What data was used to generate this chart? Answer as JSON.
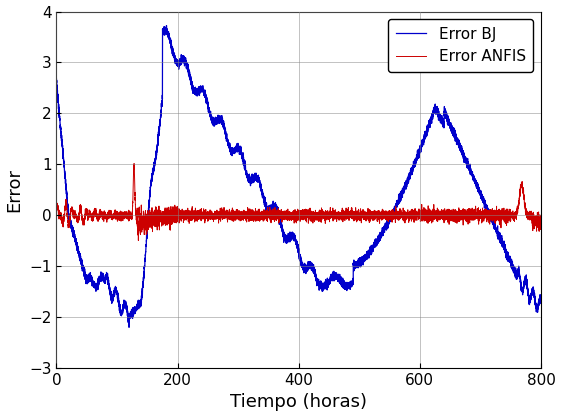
{
  "title": "",
  "xlabel": "Tiempo (horas)",
  "ylabel": "Error",
  "xlim": [
    0,
    800
  ],
  "ylim": [
    -3,
    4
  ],
  "yticks": [
    -3,
    -2,
    -1,
    0,
    1,
    2,
    3,
    4
  ],
  "xticks": [
    0,
    200,
    400,
    600,
    800
  ],
  "legend_labels": [
    "Error BJ",
    "Error ANFIS"
  ],
  "bj_color": "#0000CC",
  "anfis_color": "#CC0000",
  "grid_color": "#888888",
  "background_color": "#ffffff",
  "xlabel_fontsize": 13,
  "ylabel_fontsize": 13,
  "tick_fontsize": 11,
  "legend_fontsize": 11
}
